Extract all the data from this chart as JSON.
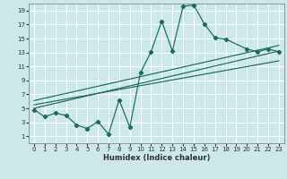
{
  "xlabel": "Humidex (Indice chaleur)",
  "bg_color": "#cce8e8",
  "grid_color": "#ffffff",
  "line_color": "#1a6b5a",
  "xlim": [
    -0.5,
    23.5
  ],
  "ylim": [
    0.0,
    20.0
  ],
  "xticks": [
    0,
    1,
    2,
    3,
    4,
    5,
    6,
    7,
    8,
    9,
    10,
    11,
    12,
    13,
    14,
    15,
    16,
    17,
    18,
    19,
    20,
    21,
    22,
    23
  ],
  "yticks": [
    1,
    3,
    5,
    7,
    9,
    11,
    13,
    15,
    17,
    19
  ],
  "main_line_x": [
    0,
    1,
    2,
    3,
    4,
    5,
    6,
    7,
    8,
    9,
    10,
    11,
    12,
    13,
    14,
    15,
    16,
    17,
    18,
    20,
    21,
    22,
    23
  ],
  "main_line_y": [
    4.8,
    3.8,
    4.3,
    4.0,
    2.6,
    2.1,
    3.1,
    1.3,
    6.2,
    2.3,
    10.1,
    13.1,
    17.5,
    13.2,
    19.6,
    19.8,
    17.1,
    15.1,
    14.9,
    13.5,
    13.1,
    13.5,
    13.1
  ],
  "line1_x": [
    0,
    23
  ],
  "line1_y": [
    5.0,
    13.2
  ],
  "line2_x": [
    0,
    23
  ],
  "line2_y": [
    5.5,
    11.8
  ],
  "line3_x": [
    0,
    23
  ],
  "line3_y": [
    6.1,
    14.0
  ]
}
